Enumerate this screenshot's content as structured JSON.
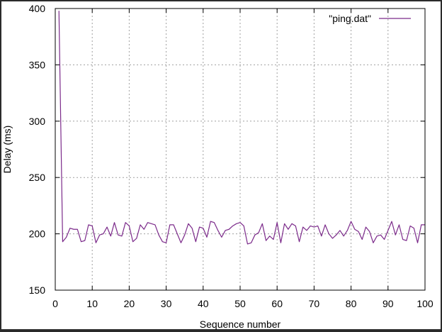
{
  "chart_data": {
    "type": "line",
    "title": "",
    "xlabel": "Sequence number",
    "ylabel": "Delay (ms)",
    "xlim": [
      0,
      100
    ],
    "ylim": [
      150,
      400
    ],
    "xticks": [
      0,
      10,
      20,
      30,
      40,
      50,
      60,
      70,
      80,
      90,
      100
    ],
    "yticks": [
      150,
      200,
      250,
      300,
      350,
      400
    ],
    "grid": true,
    "legend": "top-right",
    "series": [
      {
        "name": "\"ping.dat\"",
        "color": "#7b2a8a",
        "x": [
          1,
          2,
          3,
          4,
          5,
          6,
          7,
          8,
          9,
          10,
          11,
          12,
          13,
          14,
          15,
          16,
          17,
          18,
          19,
          20,
          21,
          22,
          23,
          24,
          25,
          26,
          27,
          28,
          29,
          30,
          31,
          32,
          33,
          34,
          35,
          36,
          37,
          38,
          39,
          40,
          41,
          42,
          43,
          44,
          45,
          46,
          47,
          48,
          49,
          50,
          51,
          52,
          53,
          54,
          55,
          56,
          57,
          58,
          59,
          60,
          61,
          62,
          63,
          64,
          65,
          66,
          67,
          68,
          69,
          70,
          71,
          72,
          73,
          74,
          75,
          76,
          77,
          78,
          79,
          80,
          81,
          82,
          83,
          84,
          85,
          86,
          87,
          88,
          89,
          90,
          91,
          92,
          93,
          94,
          95,
          96,
          97,
          98,
          99,
          100
        ],
        "y": [
          398,
          193,
          197,
          205,
          204,
          204,
          193,
          194,
          208,
          207,
          192,
          199,
          200,
          206,
          198,
          210,
          199,
          198,
          210,
          207,
          193,
          196,
          208,
          204,
          210,
          209,
          208,
          199,
          193,
          192,
          208,
          208,
          200,
          192,
          199,
          209,
          205,
          193,
          206,
          205,
          197,
          211,
          210,
          203,
          197,
          203,
          204,
          207,
          209,
          210,
          207,
          191,
          192,
          199,
          201,
          209,
          194,
          198,
          195,
          210,
          192,
          209,
          204,
          209,
          207,
          193,
          206,
          203,
          207,
          206,
          207,
          198,
          208,
          200,
          196,
          199,
          203,
          198,
          203,
          211,
          204,
          202,
          195,
          206,
          202,
          192,
          198,
          199,
          195,
          203,
          211,
          199,
          208,
          195,
          194,
          207,
          205,
          192,
          208,
          208
        ]
      }
    ]
  }
}
